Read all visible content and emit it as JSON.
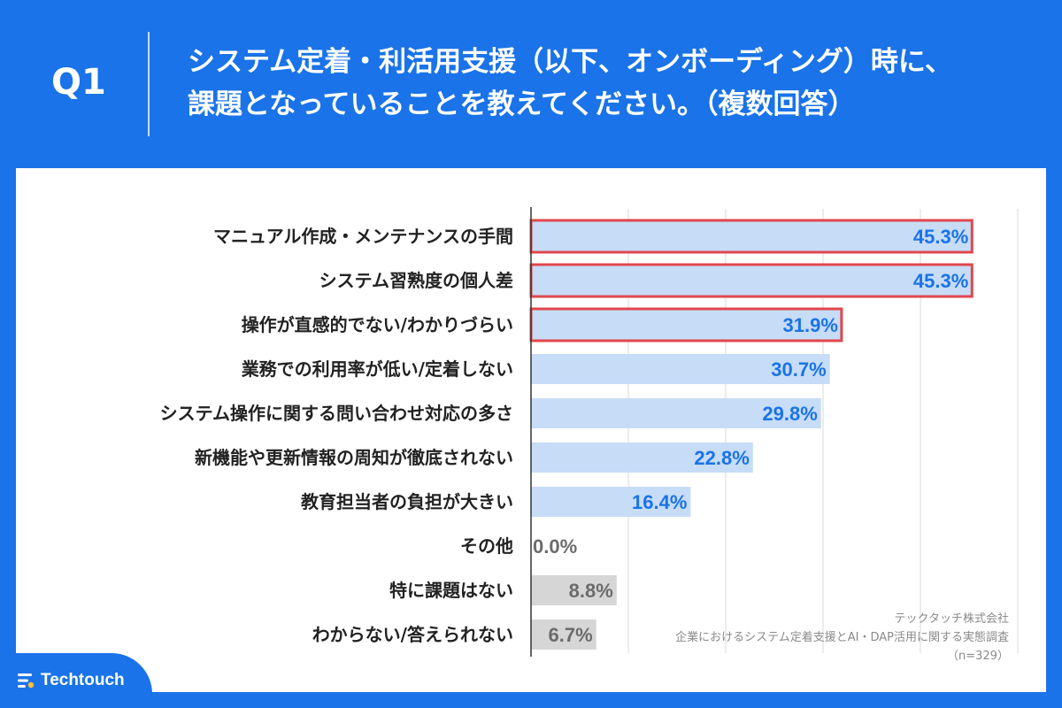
{
  "header": {
    "question_label": "Q1",
    "title_line1": "システム定着・利活用支援（以下、オンボーディング）時に、",
    "title_line2": "課題となっていることを教えてください。（複数回答）"
  },
  "chart_data": {
    "type": "bar",
    "orientation": "horizontal",
    "categories": [
      "マニュアル作成・メンテナンスの手間",
      "システム習熟度の個人差",
      "操作が直感的でない/わかりづらい",
      "業務での利用率が低い/定着しない",
      "システム操作に関する問い合わせ対応の多さ",
      "新機能や更新情報の周知が徹底されない",
      "教育担当者の負担が大きい",
      "その他",
      "特に課題はない",
      "わからない/答えられない"
    ],
    "values": [
      45.3,
      45.3,
      31.9,
      30.7,
      29.8,
      22.8,
      16.4,
      0.0,
      8.8,
      6.7
    ],
    "value_labels": [
      "45.3%",
      "45.3%",
      "31.9%",
      "30.7%",
      "29.8%",
      "22.8%",
      "16.4%",
      "0.0%",
      "8.8%",
      "6.7%"
    ],
    "highlighted": [
      true,
      true,
      true,
      false,
      false,
      false,
      false,
      false,
      false,
      false
    ],
    "bar_colors": [
      "#c7dcf7",
      "#c7dcf7",
      "#c7dcf7",
      "#c7dcf7",
      "#c7dcf7",
      "#c7dcf7",
      "#c7dcf7",
      "#d6d6d6",
      "#d6d6d6",
      "#d6d6d6"
    ],
    "label_colors": [
      "#1a73e8",
      "#1a73e8",
      "#1a73e8",
      "#1a73e8",
      "#1a73e8",
      "#1a73e8",
      "#1a73e8",
      "#6b6b6b",
      "#6b6b6b",
      "#6b6b6b"
    ],
    "highlight_color": "#e0474c",
    "xlim": [
      0,
      50
    ],
    "grid": true,
    "grid_step": 10
  },
  "footer": {
    "company": "テックタッチ株式会社",
    "survey": "企業におけるシステム定着支援とAI・DAP活用に関する実態調査",
    "sample": "（n=329）"
  },
  "brand": {
    "logo_text": "Techtouch",
    "accent": "#1a73e8",
    "dot_color": "#ffc233"
  }
}
